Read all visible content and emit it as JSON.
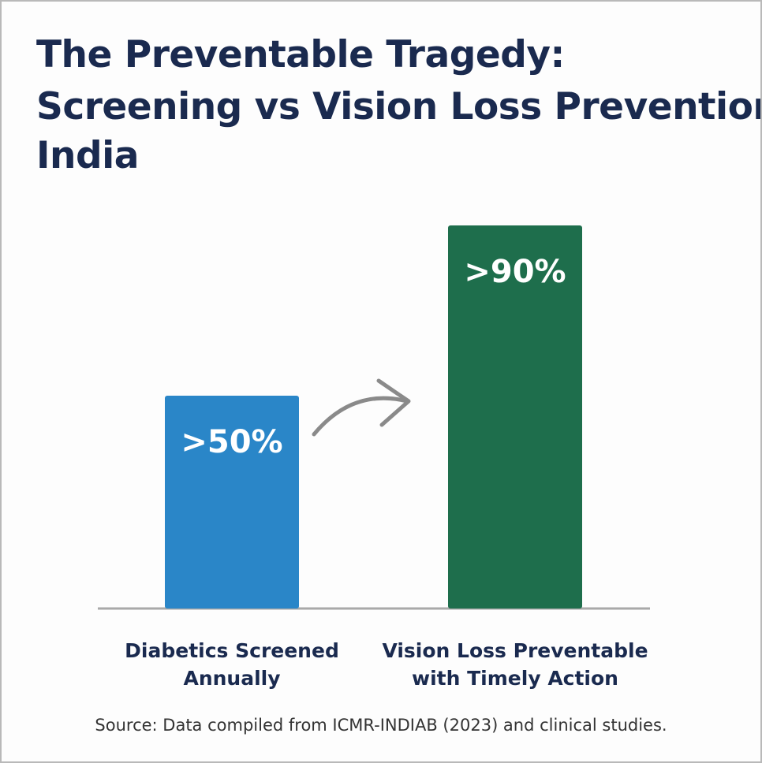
{
  "title_lines": [
    "The Preventable Tragedy:",
    "Screening vs Vision Loss Prevention",
    "India"
  ],
  "source": "Source: Data compiled from ICMR-INDIAB (2023) and clinical studies.",
  "colors": {
    "title": "#1a2a4f",
    "screened": "#2a86c8",
    "preventable": "#1e6e4c",
    "axis": "#a9a9a9",
    "arrow": "#8a8a8a"
  },
  "chart_data": {
    "type": "bar",
    "title": "The Preventable Tragedy: Screening vs Vision Loss Prevention India",
    "categories": [
      [
        "Diabetics Screened",
        "Annually"
      ],
      [
        "Vision Loss Preventable",
        "with Timely Action"
      ]
    ],
    "values": [
      50,
      90
    ],
    "value_labels": [
      ">50%",
      ">90%"
    ],
    "bar_colors": [
      "#2a86c8",
      "#1e6e4c"
    ],
    "annotations": [
      {
        "type": "curved-arrow",
        "from": "Diabetics Screened Annually",
        "to": "Vision Loss Preventable with Timely Action"
      }
    ],
    "xlabel": "",
    "ylabel": "",
    "ylim": [
      0,
      100
    ],
    "grid": false,
    "legend": "none"
  }
}
